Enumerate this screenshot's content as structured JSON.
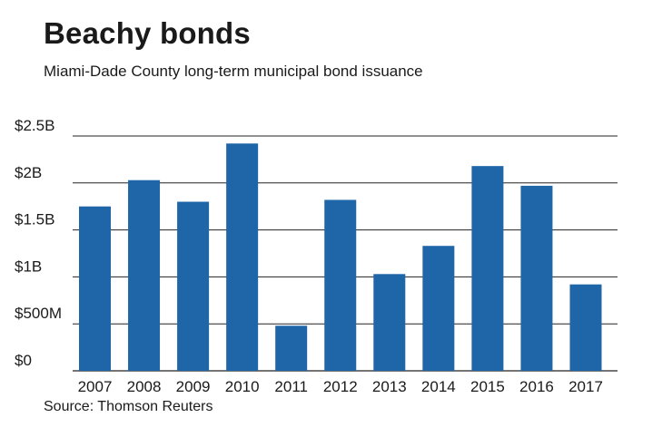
{
  "title": "Beachy bonds",
  "subtitle": "Miami-Dade County long-term municipal bond issuance",
  "source": "Source: Thomson Reuters",
  "colors": {
    "bar": "#1f66a8",
    "grid": "#222222",
    "text": "#1a1a1a"
  },
  "chart_data": {
    "type": "bar",
    "categories": [
      "2007",
      "2008",
      "2009",
      "2010",
      "2011",
      "2012",
      "2013",
      "2014",
      "2015",
      "2016",
      "2017"
    ],
    "values": [
      1.75,
      2.03,
      1.8,
      2.42,
      0.48,
      1.82,
      1.03,
      1.33,
      2.18,
      1.97,
      0.92
    ],
    "unit": "billions of dollars",
    "y_ticks": [
      0,
      0.5,
      1,
      1.5,
      2,
      2.5
    ],
    "y_tick_labels": [
      "$0",
      "$500M",
      "$1B",
      "$1.5B",
      "$2B",
      "$2.5B"
    ],
    "ylim": [
      0,
      2.5
    ],
    "grid": true,
    "legend": "none",
    "xlabel": "",
    "ylabel": ""
  }
}
